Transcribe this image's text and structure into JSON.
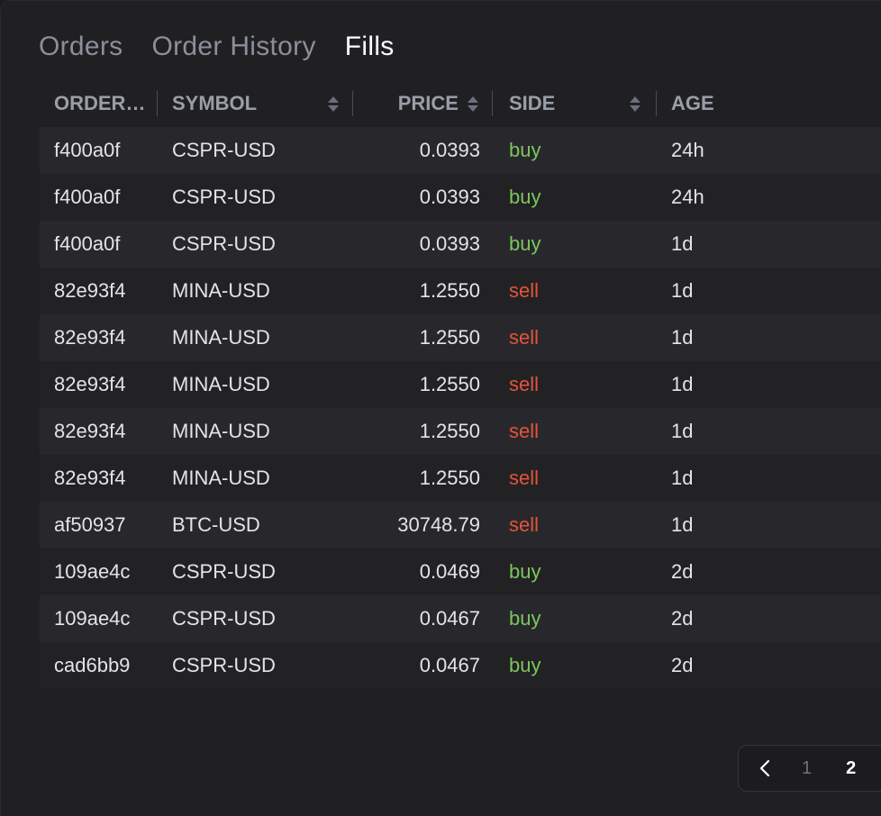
{
  "tabs": [
    {
      "label": "Orders",
      "active": false
    },
    {
      "label": "Order History",
      "active": false
    },
    {
      "label": "Fills",
      "active": true
    }
  ],
  "columns": {
    "order": "ORDER…",
    "symbol": "SYMBOL",
    "price": "PRICE",
    "side": "SIDE",
    "age": "AGE"
  },
  "rows": [
    {
      "order": "f400a0f",
      "symbol": "CSPR-USD",
      "price": "0.0393",
      "side": "buy",
      "age": "24h"
    },
    {
      "order": "f400a0f",
      "symbol": "CSPR-USD",
      "price": "0.0393",
      "side": "buy",
      "age": "24h"
    },
    {
      "order": "f400a0f",
      "symbol": "CSPR-USD",
      "price": "0.0393",
      "side": "buy",
      "age": "1d"
    },
    {
      "order": "82e93f4",
      "symbol": "MINA-USD",
      "price": "1.2550",
      "side": "sell",
      "age": "1d"
    },
    {
      "order": "82e93f4",
      "symbol": "MINA-USD",
      "price": "1.2550",
      "side": "sell",
      "age": "1d"
    },
    {
      "order": "82e93f4",
      "symbol": "MINA-USD",
      "price": "1.2550",
      "side": "sell",
      "age": "1d"
    },
    {
      "order": "82e93f4",
      "symbol": "MINA-USD",
      "price": "1.2550",
      "side": "sell",
      "age": "1d"
    },
    {
      "order": "82e93f4",
      "symbol": "MINA-USD",
      "price": "1.2550",
      "side": "sell",
      "age": "1d"
    },
    {
      "order": "af50937",
      "symbol": "BTC-USD",
      "price": "30748.79",
      "side": "sell",
      "age": "1d"
    },
    {
      "order": "109ae4c",
      "symbol": "CSPR-USD",
      "price": "0.0469",
      "side": "buy",
      "age": "2d"
    },
    {
      "order": "109ae4c",
      "symbol": "CSPR-USD",
      "price": "0.0467",
      "side": "buy",
      "age": "2d"
    },
    {
      "order": "cad6bb9",
      "symbol": "CSPR-USD",
      "price": "0.0467",
      "side": "buy",
      "age": "2d"
    }
  ],
  "pagination": {
    "prev_icon": "chevron-left-icon",
    "pages": [
      "1",
      "2"
    ],
    "current": "2"
  },
  "colors": {
    "buy": "#7cc65c",
    "sell": "#e5533a",
    "active_tab": "#ffffff",
    "inactive_tab": "#8b8f99"
  }
}
